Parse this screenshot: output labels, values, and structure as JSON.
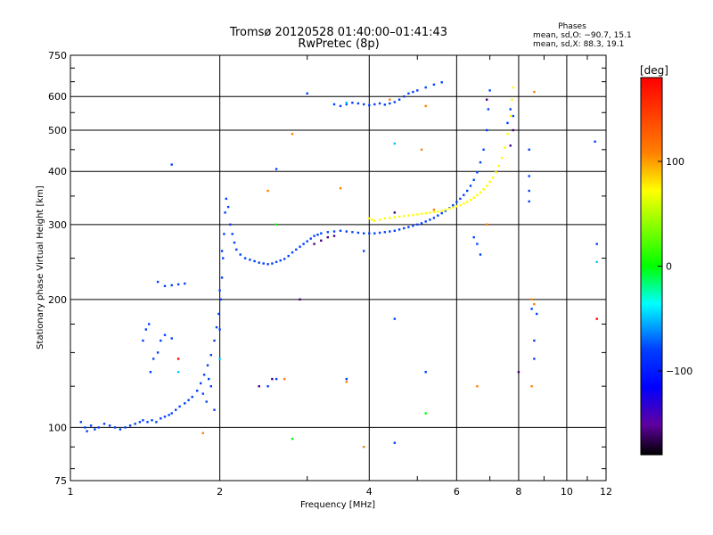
{
  "chart_data": {
    "type": "scatter",
    "title": "Tromsø 20120528 01:40:00–01:41:43",
    "subtitle": "RwPretec (8p)",
    "xlabel": "Frequency [MHz]",
    "ylabel": "Stationary phase Virtual Height [km]",
    "xscale": "log",
    "yscale": "log",
    "xlim": [
      1,
      12
    ],
    "ylim": [
      75,
      750
    ],
    "grid": true,
    "x_ticks": [
      1,
      2,
      4,
      6,
      8,
      10,
      12
    ],
    "x_tick_labels": [
      "1",
      "2",
      "4",
      "6",
      "8",
      "10",
      "12"
    ],
    "y_ticks": [
      75,
      100,
      200,
      300,
      400,
      500,
      600,
      750
    ],
    "y_tick_labels": [
      "75",
      "100",
      "200",
      "300",
      "400",
      "500",
      "600",
      "750"
    ],
    "phase_stats": {
      "heading": "Phases",
      "line_o": "mean, sd,O:  −90.7, 15.1",
      "line_x": "mean, sd,X:   88.3, 19.1"
    },
    "colorbar": {
      "label": "[deg]",
      "range": [
        -180,
        180
      ],
      "ticks": [
        100,
        0,
        -100
      ],
      "tick_labels": [
        "100",
        "0",
        "−100"
      ],
      "colors": [
        "#ff0000",
        "#ff8000",
        "#ffff00",
        "#00ff00",
        "#00ffff",
        "#0040ff",
        "#0000ff",
        "#6000a0",
        "#000000"
      ]
    },
    "series": [
      {
        "mode": "O",
        "phase": -100,
        "color": "#0040ff",
        "points": [
          [
            1.05,
            103
          ],
          [
            1.07,
            100
          ],
          [
            1.08,
            98
          ],
          [
            1.1,
            101
          ],
          [
            1.12,
            99
          ],
          [
            1.14,
            100
          ],
          [
            1.17,
            102
          ],
          [
            1.2,
            101
          ],
          [
            1.23,
            100
          ],
          [
            1.26,
            99
          ],
          [
            1.29,
            100
          ],
          [
            1.32,
            101
          ],
          [
            1.35,
            102
          ],
          [
            1.38,
            103
          ],
          [
            1.4,
            104
          ],
          [
            1.43,
            103
          ],
          [
            1.46,
            104
          ],
          [
            1.49,
            103
          ],
          [
            1.52,
            105
          ],
          [
            1.55,
            106
          ],
          [
            1.58,
            107
          ],
          [
            1.6,
            108
          ],
          [
            1.63,
            110
          ],
          [
            1.66,
            112
          ],
          [
            1.7,
            114
          ],
          [
            1.73,
            116
          ],
          [
            1.76,
            118
          ],
          [
            1.8,
            122
          ],
          [
            1.83,
            127
          ],
          [
            1.86,
            133
          ],
          [
            1.89,
            140
          ],
          [
            1.92,
            148
          ],
          [
            1.95,
            160
          ],
          [
            1.97,
            172
          ],
          [
            1.99,
            185
          ],
          [
            2.01,
            200
          ],
          [
            2.02,
            225
          ],
          [
            2.03,
            250
          ],
          [
            2.04,
            285
          ],
          [
            2.05,
            320
          ],
          [
            2.06,
            345
          ],
          [
            2.08,
            330
          ],
          [
            2.1,
            300
          ],
          [
            2.12,
            285
          ],
          [
            2.14,
            272
          ],
          [
            2.16,
            262
          ],
          [
            2.2,
            255
          ],
          [
            2.25,
            250
          ],
          [
            2.3,
            248
          ],
          [
            2.35,
            246
          ],
          [
            2.4,
            244
          ],
          [
            2.45,
            243
          ],
          [
            2.5,
            242
          ],
          [
            2.55,
            243
          ],
          [
            2.6,
            245
          ],
          [
            2.65,
            247
          ],
          [
            2.7,
            249
          ],
          [
            2.75,
            253
          ],
          [
            2.8,
            258
          ],
          [
            2.85,
            262
          ],
          [
            2.9,
            266
          ],
          [
            2.95,
            270
          ],
          [
            3.0,
            274
          ],
          [
            3.05,
            278
          ],
          [
            3.1,
            282
          ],
          [
            3.15,
            284
          ],
          [
            3.2,
            286
          ],
          [
            3.3,
            288
          ],
          [
            3.4,
            289
          ],
          [
            3.5,
            290
          ],
          [
            3.6,
            289
          ],
          [
            3.7,
            288
          ],
          [
            3.8,
            287
          ],
          [
            3.9,
            286
          ],
          [
            4.0,
            286
          ],
          [
            4.1,
            286
          ],
          [
            4.2,
            287
          ],
          [
            4.3,
            288
          ],
          [
            4.4,
            289
          ],
          [
            4.5,
            290
          ],
          [
            4.6,
            292
          ],
          [
            4.7,
            294
          ],
          [
            4.8,
            296
          ],
          [
            4.9,
            298
          ],
          [
            5.0,
            300
          ],
          [
            5.1,
            302
          ],
          [
            5.2,
            305
          ],
          [
            5.3,
            308
          ],
          [
            5.4,
            311
          ],
          [
            5.5,
            315
          ],
          [
            5.6,
            319
          ],
          [
            5.7,
            323
          ],
          [
            5.8,
            328
          ],
          [
            5.9,
            333
          ],
          [
            6.0,
            339
          ],
          [
            6.1,
            345
          ],
          [
            6.2,
            352
          ],
          [
            6.3,
            360
          ],
          [
            6.4,
            370
          ],
          [
            6.5,
            382
          ],
          [
            6.6,
            398
          ],
          [
            6.7,
            420
          ],
          [
            6.8,
            450
          ],
          [
            6.9,
            500
          ],
          [
            6.95,
            560
          ],
          [
            7.0,
            620
          ],
          [
            1.45,
            135
          ],
          [
            1.47,
            145
          ],
          [
            1.5,
            150
          ],
          [
            1.52,
            160
          ],
          [
            1.55,
            165
          ],
          [
            1.6,
            162
          ],
          [
            1.5,
            220
          ],
          [
            1.55,
            215
          ],
          [
            1.6,
            216
          ],
          [
            1.65,
            217
          ],
          [
            1.7,
            218
          ],
          [
            1.4,
            160
          ],
          [
            1.42,
            170
          ],
          [
            1.44,
            175
          ],
          [
            1.9,
            130
          ],
          [
            1.92,
            125
          ],
          [
            1.85,
            120
          ],
          [
            1.88,
            115
          ],
          [
            1.95,
            110
          ],
          [
            2.0,
            170
          ],
          [
            2.0,
            210
          ],
          [
            2.02,
            260
          ],
          [
            3.4,
            575
          ],
          [
            3.5,
            570
          ],
          [
            3.6,
            575
          ],
          [
            3.7,
            580
          ],
          [
            3.8,
            578
          ],
          [
            3.9,
            575
          ],
          [
            4.0,
            572
          ],
          [
            4.1,
            575
          ],
          [
            4.2,
            578
          ],
          [
            4.3,
            574
          ],
          [
            4.4,
            578
          ],
          [
            4.5,
            582
          ],
          [
            4.6,
            590
          ],
          [
            4.7,
            600
          ],
          [
            4.8,
            610
          ],
          [
            4.9,
            615
          ],
          [
            5.0,
            620
          ],
          [
            5.2,
            630
          ],
          [
            5.4,
            640
          ],
          [
            5.6,
            648
          ],
          [
            3.0,
            610
          ],
          [
            1.6,
            415
          ],
          [
            2.6,
            405
          ],
          [
            6.5,
            280
          ],
          [
            6.6,
            270
          ],
          [
            6.7,
            255
          ],
          [
            8.4,
            450
          ],
          [
            8.4,
            390
          ],
          [
            8.4,
            360
          ],
          [
            8.4,
            340
          ],
          [
            8.5,
            190
          ],
          [
            8.6,
            160
          ],
          [
            8.7,
            185
          ],
          [
            11.5,
            270
          ],
          [
            11.4,
            470
          ],
          [
            8.6,
            145
          ],
          [
            5.2,
            135
          ],
          [
            4.5,
            180
          ],
          [
            3.6,
            130
          ],
          [
            4.5,
            92
          ],
          [
            3.9,
            260
          ],
          [
            2.5,
            125
          ],
          [
            2.6,
            130
          ],
          [
            7.6,
            520
          ],
          [
            7.7,
            560
          ],
          [
            7.8,
            540
          ]
        ]
      },
      {
        "mode": "X",
        "phase": 100,
        "color": "#ffff00",
        "points": [
          [
            4.1,
            306
          ],
          [
            4.2,
            308
          ],
          [
            4.3,
            310
          ],
          [
            4.4,
            311
          ],
          [
            4.5,
            312
          ],
          [
            4.6,
            313
          ],
          [
            4.7,
            314
          ],
          [
            4.8,
            315
          ],
          [
            4.9,
            316
          ],
          [
            5.0,
            317
          ],
          [
            5.1,
            318
          ],
          [
            5.2,
            319
          ],
          [
            5.3,
            320
          ],
          [
            5.4,
            321
          ],
          [
            5.5,
            322
          ],
          [
            5.6,
            323
          ],
          [
            5.7,
            325
          ],
          [
            5.8,
            327
          ],
          [
            5.9,
            329
          ],
          [
            6.0,
            331
          ],
          [
            6.1,
            333
          ],
          [
            6.2,
            336
          ],
          [
            6.3,
            339
          ],
          [
            6.4,
            343
          ],
          [
            6.5,
            347
          ],
          [
            6.6,
            352
          ],
          [
            6.7,
            357
          ],
          [
            6.8,
            363
          ],
          [
            6.9,
            370
          ],
          [
            7.0,
            378
          ],
          [
            7.1,
            387
          ],
          [
            7.2,
            398
          ],
          [
            7.3,
            412
          ],
          [
            7.4,
            430
          ],
          [
            7.5,
            455
          ],
          [
            7.6,
            490
          ],
          [
            7.7,
            540
          ],
          [
            7.75,
            590
          ],
          [
            7.8,
            630
          ],
          [
            4.0,
            310
          ],
          [
            4.05,
            308
          ]
        ]
      },
      {
        "mode": "other",
        "phase": 150,
        "color": "#ff8000",
        "points": [
          [
            3.5,
            365
          ],
          [
            3.6,
            128
          ],
          [
            3.9,
            90
          ],
          [
            4.4,
            590
          ],
          [
            5.1,
            450
          ],
          [
            5.2,
            570
          ],
          [
            6.6,
            125
          ],
          [
            8.5,
            125
          ],
          [
            8.5,
            200
          ],
          [
            8.6,
            195
          ],
          [
            8.6,
            615
          ],
          [
            1.85,
            97
          ],
          [
            2.5,
            360
          ],
          [
            2.8,
            490
          ],
          [
            6.9,
            300
          ],
          [
            5.4,
            325
          ],
          [
            2.7,
            130
          ]
        ]
      },
      {
        "mode": "other",
        "phase": 20,
        "color": "#00ff00",
        "points": [
          [
            5.2,
            108
          ],
          [
            2.8,
            94
          ],
          [
            2.6,
            300
          ]
        ]
      },
      {
        "mode": "other",
        "phase": -40,
        "color": "#00c8ff",
        "points": [
          [
            4.5,
            465
          ],
          [
            3.6,
            580
          ],
          [
            2.0,
            145
          ],
          [
            1.65,
            135
          ],
          [
            11.5,
            245
          ]
        ]
      },
      {
        "mode": "other",
        "phase": -150,
        "color": "#400080",
        "points": [
          [
            3.2,
            275
          ],
          [
            3.3,
            280
          ],
          [
            3.4,
            282
          ],
          [
            3.1,
            270
          ],
          [
            2.9,
            200
          ],
          [
            2.55,
            130
          ],
          [
            2.4,
            125
          ],
          [
            7.8,
            500
          ],
          [
            7.7,
            460
          ],
          [
            8.0,
            135
          ],
          [
            4.5,
            320
          ],
          [
            6.9,
            590
          ]
        ]
      },
      {
        "mode": "other",
        "phase": 175,
        "color": "#ff0000",
        "points": [
          [
            1.65,
            145
          ],
          [
            11.5,
            180
          ]
        ]
      }
    ]
  }
}
